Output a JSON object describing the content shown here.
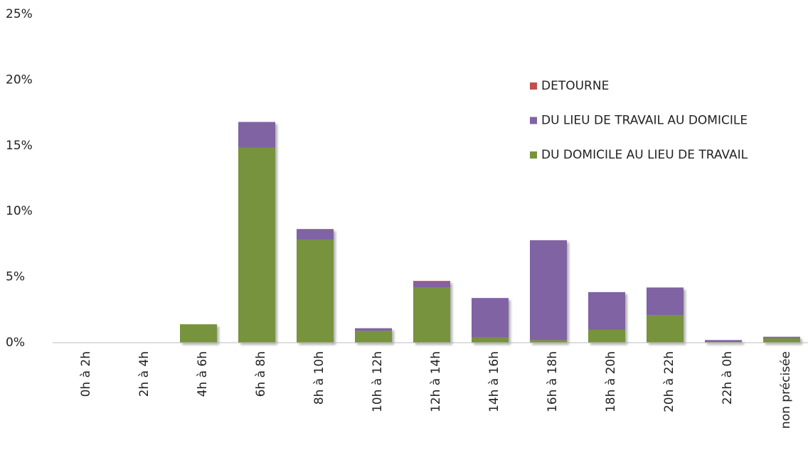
{
  "chart_data": {
    "type": "stacked_bar",
    "categories": [
      "0h à 2h",
      "2h à 4h",
      "4h à 6h",
      "6h à 8h",
      "8h à 10h",
      "10h à 12h",
      "12h à 14h",
      "14h à 16h",
      "16h à 18h",
      "18h à 20h",
      "20h à 22h",
      "22h à 0h",
      "non précisée"
    ],
    "series": [
      {
        "name": "DU DOMICILE AU LIEU DE TRAVAIL",
        "color": "#77933c",
        "values": [
          0,
          0,
          1.4,
          14.85,
          7.85,
          0.9,
          4.2,
          0.4,
          0.2,
          1.0,
          2.1,
          0.05,
          0.35
        ]
      },
      {
        "name": "DU LIEU DE TRAVAIL AU DOMICILE",
        "color": "#8064a2",
        "values": [
          0,
          0,
          0,
          1.95,
          0.8,
          0.2,
          0.4,
          3.0,
          7.6,
          2.85,
          2.1,
          0.15,
          0.1
        ]
      },
      {
        "name": "DETOURNE",
        "color": "#c0504d",
        "values": [
          0,
          0,
          0,
          0,
          0,
          0,
          0.1,
          0,
          0,
          0,
          0,
          0,
          0
        ]
      }
    ],
    "ylim": [
      0,
      25
    ],
    "yticks": [
      {
        "value": 0,
        "label": "0%"
      },
      {
        "value": 5,
        "label": "5%"
      },
      {
        "value": 10,
        "label": "10%"
      },
      {
        "value": 15,
        "label": "15%"
      },
      {
        "value": 20,
        "label": "20%"
      },
      {
        "value": 25,
        "label": "25%"
      }
    ],
    "grid": false,
    "legend": "upper right"
  }
}
